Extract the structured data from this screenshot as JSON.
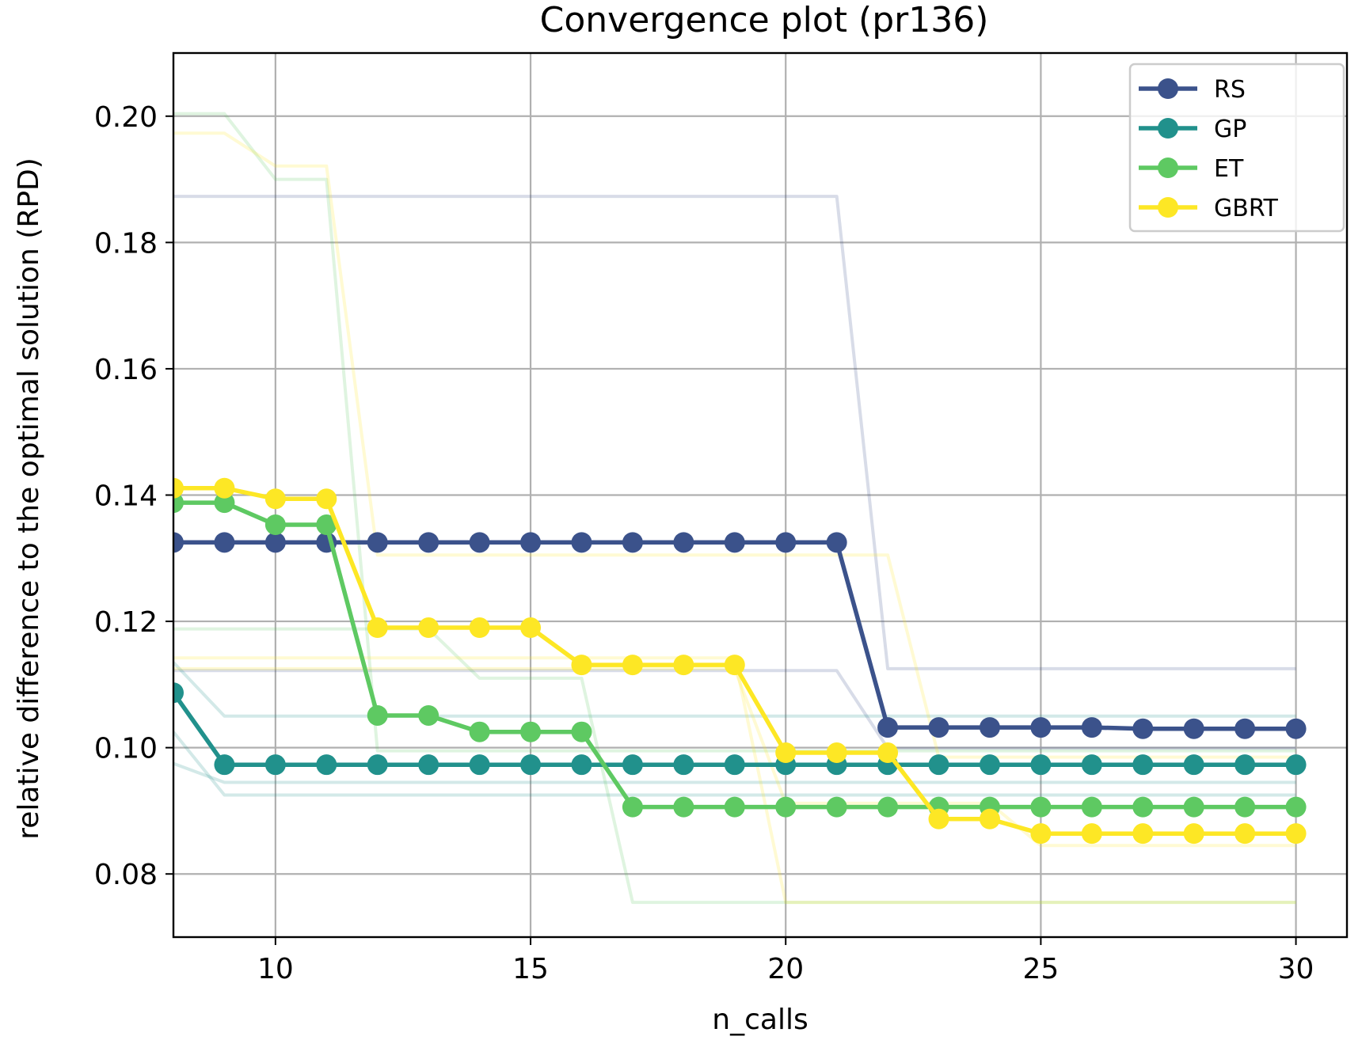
{
  "chart_data": {
    "type": "line",
    "title": "Convergence plot (pr136)",
    "xlabel": "n_calls",
    "ylabel": "relative difference to the optimal solution (RPD)",
    "xlim": [
      8,
      31
    ],
    "ylim": [
      0.07,
      0.21
    ],
    "xticks": [
      10,
      15,
      20,
      25,
      30
    ],
    "yticks": [
      0.08,
      0.1,
      0.12,
      0.14,
      0.16,
      0.18,
      0.2
    ],
    "grid": true,
    "legend_position": "top-right",
    "x": [
      8,
      9,
      10,
      11,
      12,
      13,
      14,
      15,
      16,
      17,
      18,
      19,
      20,
      21,
      22,
      23,
      24,
      25,
      26,
      27,
      28,
      29,
      30
    ],
    "series": [
      {
        "name": "RS",
        "color": "#3b528b",
        "values": [
          0.1325,
          0.1325,
          0.1325,
          0.1325,
          0.1325,
          0.1325,
          0.1325,
          0.1325,
          0.1325,
          0.1325,
          0.1325,
          0.1325,
          0.1325,
          0.1325,
          0.1032,
          0.1032,
          0.1032,
          0.1032,
          0.1032,
          0.103,
          0.103,
          0.103,
          0.103
        ]
      },
      {
        "name": "GP",
        "color": "#21918c",
        "values": [
          0.1087,
          0.0973,
          0.0973,
          0.0973,
          0.0973,
          0.0973,
          0.0973,
          0.0973,
          0.0973,
          0.0973,
          0.0973,
          0.0973,
          0.0973,
          0.0973,
          0.0973,
          0.0973,
          0.0973,
          0.0973,
          0.0973,
          0.0973,
          0.0973,
          0.0973,
          0.0973
        ]
      },
      {
        "name": "ET",
        "color": "#5ec962",
        "values": [
          0.1388,
          0.1388,
          0.1353,
          0.1353,
          0.1051,
          0.1051,
          0.1025,
          0.1025,
          0.1025,
          0.0906,
          0.0906,
          0.0906,
          0.0906,
          0.0906,
          0.0906,
          0.0906,
          0.0906,
          0.0906,
          0.0906,
          0.0906,
          0.0906,
          0.0906,
          0.0906
        ]
      },
      {
        "name": "GBRT",
        "color": "#fde725",
        "values": [
          0.1411,
          0.1411,
          0.1394,
          0.1394,
          0.119,
          0.119,
          0.119,
          0.119,
          0.1131,
          0.1131,
          0.1131,
          0.1131,
          0.0992,
          0.0992,
          0.0992,
          0.0887,
          0.0887,
          0.0864,
          0.0864,
          0.0864,
          0.0864,
          0.0864,
          0.0864
        ]
      }
    ],
    "individual_runs": [
      {
        "series": "RS",
        "values": [
          0.1873,
          0.1873,
          0.1873,
          0.1873,
          0.1873,
          0.1873,
          0.1873,
          0.1873,
          0.1873,
          0.1873,
          0.1873,
          0.1873,
          0.1873,
          0.1873,
          0.1125,
          0.1125,
          0.1125,
          0.1125,
          0.1125,
          0.1125,
          0.1125,
          0.1125,
          0.1125
        ]
      },
      {
        "series": "RS",
        "values": [
          0.1122,
          0.1122,
          0.1122,
          0.1122,
          0.1122,
          0.1122,
          0.1122,
          0.1122,
          0.1122,
          0.1122,
          0.1122,
          0.1122,
          0.1122,
          0.1122,
          0.0999,
          0.0999,
          0.0999,
          0.0999,
          0.0999,
          0.0999,
          0.0999,
          0.0999,
          0.0999
        ]
      },
      {
        "series": "GP",
        "values": [
          0.1135,
          0.105,
          0.105,
          0.105,
          0.105,
          0.105,
          0.105,
          0.105,
          0.105,
          0.105,
          0.105,
          0.105,
          0.105,
          0.105,
          0.105,
          0.105,
          0.105,
          0.105,
          0.105,
          0.105,
          0.105,
          0.105,
          0.105
        ]
      },
      {
        "series": "GP",
        "values": [
          0.1025,
          0.0925,
          0.0925,
          0.0925,
          0.0925,
          0.0925,
          0.0925,
          0.0925,
          0.0925,
          0.0925,
          0.0925,
          0.0925,
          0.0925,
          0.0925,
          0.0925,
          0.0925,
          0.0925,
          0.0925,
          0.0925,
          0.0925,
          0.0925,
          0.0925,
          0.0925
        ]
      },
      {
        "series": "GP",
        "values": [
          0.0975,
          0.0945,
          0.0945,
          0.0945,
          0.0945,
          0.0945,
          0.0945,
          0.0945,
          0.0945,
          0.0945,
          0.0945,
          0.0945,
          0.0945,
          0.0945,
          0.0945,
          0.0945,
          0.0945,
          0.0945,
          0.0945,
          0.0945,
          0.0945,
          0.0945,
          0.0945
        ]
      },
      {
        "series": "ET",
        "values": [
          0.2004,
          0.2004,
          0.19,
          0.19,
          0.0995,
          0.0995,
          0.0995,
          0.0995,
          0.0995,
          0.0995,
          0.0995,
          0.0995,
          0.0995,
          0.0995,
          0.0995,
          0.0995,
          0.0995,
          0.0995,
          0.0995,
          0.0995,
          0.0995,
          0.0995,
          0.0995
        ]
      },
      {
        "series": "ET",
        "values": [
          0.1188,
          0.1188,
          0.1188,
          0.1188,
          0.1188,
          0.1188,
          0.111,
          0.111,
          0.111,
          0.0755,
          0.0755,
          0.0755,
          0.0755,
          0.0755,
          0.0755,
          0.0755,
          0.0755,
          0.0755,
          0.0755,
          0.0755,
          0.0755,
          0.0755,
          0.0755
        ]
      },
      {
        "series": "GBRT",
        "values": [
          0.1973,
          0.1973,
          0.1921,
          0.1921,
          0.1305,
          0.1305,
          0.1305,
          0.1305,
          0.1305,
          0.1305,
          0.1305,
          0.1305,
          0.1305,
          0.1305,
          0.1305,
          0.0985,
          0.0985,
          0.0985,
          0.0985,
          0.0985,
          0.0985,
          0.0985,
          0.0985
        ]
      },
      {
        "series": "GBRT",
        "values": [
          0.1142,
          0.1142,
          0.1142,
          0.1142,
          0.1142,
          0.1142,
          0.1142,
          0.1142,
          0.1142,
          0.1142,
          0.1142,
          0.1142,
          0.0755,
          0.0755,
          0.0755,
          0.0755,
          0.0755,
          0.0755,
          0.0755,
          0.0755,
          0.0755,
          0.0755,
          0.0755
        ]
      },
      {
        "series": "GBRT",
        "values": [
          0.1125,
          0.1125,
          0.1125,
          0.1125,
          0.1125,
          0.1125,
          0.1125,
          0.1125,
          0.1125,
          0.1125,
          0.1125,
          0.1125,
          0.0912,
          0.0912,
          0.0912,
          0.0912,
          0.0912,
          0.0845,
          0.0845,
          0.0845,
          0.0845,
          0.0845,
          0.0845
        ]
      }
    ]
  }
}
